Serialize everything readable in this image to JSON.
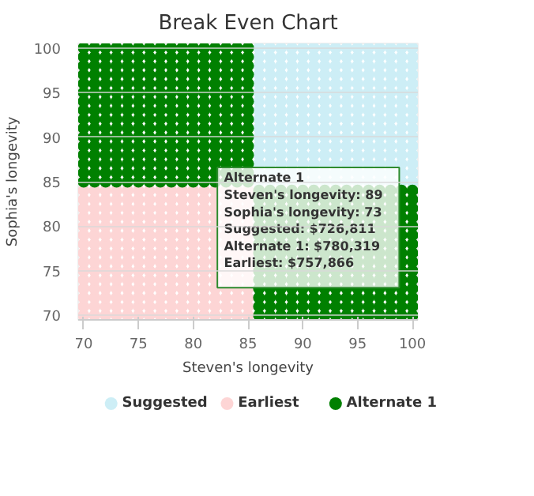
{
  "chart_data": {
    "type": "scatter",
    "title": "Break Even Chart",
    "xlabel": "Steven's longevity",
    "ylabel": "Sophia's longevity",
    "xlim": [
      69.5,
      100.5
    ],
    "ylim": [
      69.5,
      100.5
    ],
    "xticks": [
      70,
      75,
      80,
      85,
      90,
      95,
      100
    ],
    "yticks": [
      70,
      75,
      80,
      85,
      90,
      95,
      100
    ],
    "grid": "y",
    "legend": "bottom",
    "marker": "circle",
    "series": [
      {
        "name": "Suggested",
        "color": "#cdeef6",
        "x": [
          86,
          87,
          88,
          89,
          90,
          91,
          92,
          93,
          94,
          95,
          96,
          97,
          98,
          99,
          100,
          86,
          87,
          88,
          89,
          90,
          91,
          92,
          93,
          94,
          95,
          96,
          97,
          98,
          99,
          100,
          86,
          87,
          88,
          89,
          90,
          91,
          92,
          93,
          94,
          95,
          96,
          97,
          98,
          99,
          100,
          86,
          87,
          88,
          89,
          90,
          91,
          92,
          93,
          94,
          95,
          96,
          97,
          98,
          99,
          100,
          86,
          87,
          88,
          89,
          90,
          91,
          92,
          93,
          94,
          95,
          96,
          97,
          98,
          99,
          100,
          86,
          87,
          88,
          89,
          90,
          91,
          92,
          93,
          94,
          95,
          96,
          97,
          98,
          99,
          100,
          86,
          87,
          88,
          89,
          90,
          91,
          92,
          93,
          94,
          95,
          96,
          97,
          98,
          99,
          100,
          86,
          87,
          88,
          89,
          90,
          91,
          92,
          93,
          94,
          95,
          96,
          97,
          98,
          99,
          100,
          86,
          87,
          88,
          89,
          90,
          91,
          92,
          93,
          94,
          95,
          96,
          97,
          98,
          99,
          100,
          86,
          87,
          88,
          89,
          90,
          91,
          92,
          93,
          94,
          95,
          96,
          97,
          98,
          99,
          100,
          86,
          87,
          88,
          89,
          90,
          91,
          92,
          93,
          94,
          95,
          96,
          97,
          98,
          99,
          100,
          86,
          87,
          88,
          89,
          90,
          91,
          92,
          93,
          94,
          95,
          96,
          97,
          98,
          99,
          100,
          86,
          87,
          88,
          89,
          90,
          91,
          92,
          93,
          94,
          95,
          96,
          97,
          98,
          99,
          100,
          86,
          87,
          88,
          89,
          90,
          91,
          92,
          93,
          94,
          95,
          96,
          97,
          98,
          99,
          100,
          86,
          87,
          88,
          89,
          90,
          91,
          92,
          93,
          94,
          95,
          96,
          97,
          98,
          99,
          100,
          86,
          87,
          88,
          89,
          90,
          91,
          92,
          93,
          94,
          95,
          96,
          97,
          98,
          99,
          100
        ],
        "values": [
          85,
          85,
          85,
          85,
          85,
          85,
          85,
          85,
          85,
          85,
          85,
          85,
          85,
          85,
          85,
          86,
          86,
          86,
          86,
          86,
          86,
          86,
          86,
          86,
          86,
          86,
          86,
          86,
          86,
          86,
          87,
          87,
          87,
          87,
          87,
          87,
          87,
          87,
          87,
          87,
          87,
          87,
          87,
          87,
          87,
          88,
          88,
          88,
          88,
          88,
          88,
          88,
          88,
          88,
          88,
          88,
          88,
          88,
          88,
          88,
          89,
          89,
          89,
          89,
          89,
          89,
          89,
          89,
          89,
          89,
          89,
          89,
          89,
          89,
          89,
          90,
          90,
          90,
          90,
          90,
          90,
          90,
          90,
          90,
          90,
          90,
          90,
          90,
          90,
          90,
          91,
          91,
          91,
          91,
          91,
          91,
          91,
          91,
          91,
          91,
          91,
          91,
          91,
          91,
          91,
          92,
          92,
          92,
          92,
          92,
          92,
          92,
          92,
          92,
          92,
          92,
          92,
          92,
          92,
          92,
          93,
          93,
          93,
          93,
          93,
          93,
          93,
          93,
          93,
          93,
          93,
          93,
          93,
          93,
          93,
          94,
          94,
          94,
          94,
          94,
          94,
          94,
          94,
          94,
          94,
          94,
          94,
          94,
          94,
          94,
          95,
          95,
          95,
          95,
          95,
          95,
          95,
          95,
          95,
          95,
          95,
          95,
          95,
          95,
          95,
          96,
          96,
          96,
          96,
          96,
          96,
          96,
          96,
          96,
          96,
          96,
          96,
          96,
          96,
          96,
          97,
          97,
          97,
          97,
          97,
          97,
          97,
          97,
          97,
          97,
          97,
          97,
          97,
          97,
          97,
          98,
          98,
          98,
          98,
          98,
          98,
          98,
          98,
          98,
          98,
          98,
          98,
          98,
          98,
          98,
          99,
          99,
          99,
          99,
          99,
          99,
          99,
          99,
          99,
          99,
          99,
          99,
          99,
          99,
          99,
          100,
          100,
          100,
          100,
          100,
          100,
          100,
          100,
          100,
          100,
          100,
          100,
          100,
          100,
          100
        ]
      },
      {
        "name": "Earliest",
        "color": "#fdd5d5",
        "x": [
          70,
          71,
          72,
          73,
          74,
          75,
          76,
          77,
          78,
          79,
          80,
          81,
          82,
          83,
          84,
          85,
          70,
          71,
          72,
          73,
          74,
          75,
          76,
          77,
          78,
          79,
          80,
          81,
          82,
          83,
          84,
          85,
          70,
          71,
          72,
          73,
          74,
          75,
          76,
          77,
          78,
          79,
          80,
          81,
          82,
          83,
          84,
          85,
          70,
          71,
          72,
          73,
          74,
          75,
          76,
          77,
          78,
          79,
          80,
          81,
          82,
          83,
          84,
          85,
          70,
          71,
          72,
          73,
          74,
          75,
          76,
          77,
          78,
          79,
          80,
          81,
          82,
          83,
          84,
          85,
          70,
          71,
          72,
          73,
          74,
          75,
          76,
          77,
          78,
          79,
          80,
          81,
          82,
          83,
          84,
          85,
          70,
          71,
          72,
          73,
          74,
          75,
          76,
          77,
          78,
          79,
          80,
          81,
          82,
          83,
          84,
          85,
          70,
          71,
          72,
          73,
          74,
          75,
          76,
          77,
          78,
          79,
          80,
          81,
          82,
          83,
          84,
          85,
          70,
          71,
          72,
          73,
          74,
          75,
          76,
          77,
          78,
          79,
          80,
          81,
          82,
          83,
          84,
          85,
          70,
          71,
          72,
          73,
          74,
          75,
          76,
          77,
          78,
          79,
          80,
          81,
          82,
          83,
          84,
          85,
          70,
          71,
          72,
          73,
          74,
          75,
          76,
          77,
          78,
          79,
          80,
          81,
          82,
          83,
          84,
          85,
          70,
          71,
          72,
          73,
          74,
          75,
          76,
          77,
          78,
          79,
          80,
          81,
          82,
          83,
          84,
          85,
          70,
          71,
          72,
          73,
          74,
          75,
          76,
          77,
          78,
          79,
          80,
          81,
          82,
          83,
          84,
          85,
          70,
          71,
          72,
          73,
          74,
          75,
          76,
          77,
          78,
          79,
          80,
          81,
          82,
          83,
          84,
          85,
          70,
          71,
          72,
          73,
          74,
          75,
          76,
          77,
          78,
          79,
          80,
          81,
          82,
          83,
          84,
          85
        ],
        "values": [
          70,
          70,
          70,
          70,
          70,
          70,
          70,
          70,
          70,
          70,
          70,
          70,
          70,
          70,
          70,
          70,
          71,
          71,
          71,
          71,
          71,
          71,
          71,
          71,
          71,
          71,
          71,
          71,
          71,
          71,
          71,
          71,
          72,
          72,
          72,
          72,
          72,
          72,
          72,
          72,
          72,
          72,
          72,
          72,
          72,
          72,
          72,
          72,
          73,
          73,
          73,
          73,
          73,
          73,
          73,
          73,
          73,
          73,
          73,
          73,
          73,
          73,
          73,
          73,
          74,
          74,
          74,
          74,
          74,
          74,
          74,
          74,
          74,
          74,
          74,
          74,
          74,
          74,
          74,
          74,
          75,
          75,
          75,
          75,
          75,
          75,
          75,
          75,
          75,
          75,
          75,
          75,
          75,
          75,
          75,
          75,
          76,
          76,
          76,
          76,
          76,
          76,
          76,
          76,
          76,
          76,
          76,
          76,
          76,
          76,
          76,
          76,
          77,
          77,
          77,
          77,
          77,
          77,
          77,
          77,
          77,
          77,
          77,
          77,
          77,
          77,
          77,
          77,
          78,
          78,
          78,
          78,
          78,
          78,
          78,
          78,
          78,
          78,
          78,
          78,
          78,
          78,
          78,
          78,
          79,
          79,
          79,
          79,
          79,
          79,
          79,
          79,
          79,
          79,
          79,
          79,
          79,
          79,
          79,
          79,
          80,
          80,
          80,
          80,
          80,
          80,
          80,
          80,
          80,
          80,
          80,
          80,
          80,
          80,
          80,
          80,
          81,
          81,
          81,
          81,
          81,
          81,
          81,
          81,
          81,
          81,
          81,
          81,
          81,
          81,
          81,
          81,
          82,
          82,
          82,
          82,
          82,
          82,
          82,
          82,
          82,
          82,
          82,
          82,
          82,
          82,
          82,
          82,
          83,
          83,
          83,
          83,
          83,
          83,
          83,
          83,
          83,
          83,
          83,
          83,
          83,
          83,
          83,
          83,
          84,
          84,
          84,
          84,
          84,
          84,
          84,
          84,
          84,
          84,
          84,
          84,
          84,
          84,
          84,
          84
        ]
      },
      {
        "name": "Alternate 1",
        "color": "#008000",
        "x": [
          70,
          71,
          72,
          73,
          74,
          75,
          76,
          77,
          78,
          79,
          80,
          81,
          82,
          83,
          84,
          85,
          70,
          71,
          72,
          73,
          74,
          75,
          76,
          77,
          78,
          79,
          80,
          81,
          82,
          83,
          84,
          85,
          70,
          71,
          72,
          73,
          74,
          75,
          76,
          77,
          78,
          79,
          80,
          81,
          82,
          83,
          84,
          85,
          70,
          71,
          72,
          73,
          74,
          75,
          76,
          77,
          78,
          79,
          80,
          81,
          82,
          83,
          84,
          85,
          70,
          71,
          72,
          73,
          74,
          75,
          76,
          77,
          78,
          79,
          80,
          81,
          82,
          83,
          84,
          85,
          70,
          71,
          72,
          73,
          74,
          75,
          76,
          77,
          78,
          79,
          80,
          81,
          82,
          83,
          84,
          85,
          70,
          71,
          72,
          73,
          74,
          75,
          76,
          77,
          78,
          79,
          80,
          81,
          82,
          83,
          84,
          85,
          70,
          71,
          72,
          73,
          74,
          75,
          76,
          77,
          78,
          79,
          80,
          81,
          82,
          83,
          84,
          85,
          70,
          71,
          72,
          73,
          74,
          75,
          76,
          77,
          78,
          79,
          80,
          81,
          82,
          83,
          84,
          85,
          70,
          71,
          72,
          73,
          74,
          75,
          76,
          77,
          78,
          79,
          80,
          81,
          82,
          83,
          84,
          85,
          70,
          71,
          72,
          73,
          74,
          75,
          76,
          77,
          78,
          79,
          80,
          81,
          82,
          83,
          84,
          85,
          70,
          71,
          72,
          73,
          74,
          75,
          76,
          77,
          78,
          79,
          80,
          81,
          82,
          83,
          84,
          85,
          70,
          71,
          72,
          73,
          74,
          75,
          76,
          77,
          78,
          79,
          80,
          81,
          82,
          83,
          84,
          85,
          70,
          71,
          72,
          73,
          74,
          75,
          76,
          77,
          78,
          79,
          80,
          81,
          82,
          83,
          84,
          85,
          70,
          71,
          72,
          73,
          74,
          75,
          76,
          77,
          78,
          79,
          80,
          81,
          82,
          83,
          84,
          85,
          70,
          71,
          72,
          73,
          74,
          75,
          76,
          77,
          78,
          79,
          80,
          81,
          82,
          83,
          84,
          85,
          86,
          87,
          88,
          89,
          90,
          91,
          92,
          93,
          94,
          95,
          96,
          97,
          98,
          99,
          100,
          86,
          87,
          88,
          89,
          90,
          91,
          92,
          93,
          94,
          95,
          96,
          97,
          98,
          99,
          100,
          86,
          87,
          88,
          89,
          90,
          91,
          92,
          93,
          94,
          95,
          96,
          97,
          98,
          99,
          100,
          86,
          87,
          88,
          89,
          90,
          91,
          92,
          93,
          94,
          95,
          96,
          97,
          98,
          99,
          100,
          86,
          87,
          88,
          89,
          90,
          91,
          92,
          93,
          94,
          95,
          96,
          97,
          98,
          99,
          100,
          86,
          87,
          88,
          89,
          90,
          91,
          92,
          93,
          94,
          95,
          96,
          97,
          98,
          99,
          100,
          86,
          87,
          88,
          89,
          90,
          91,
          92,
          93,
          94,
          95,
          96,
          97,
          98,
          99,
          100,
          86,
          87,
          88,
          89,
          90,
          91,
          92,
          93,
          94,
          95,
          96,
          97,
          98,
          99,
          100,
          86,
          87,
          88,
          89,
          90,
          91,
          92,
          93,
          94,
          95,
          96,
          97,
          98,
          99,
          100,
          86,
          87,
          88,
          89,
          90,
          91,
          92,
          93,
          94,
          95,
          96,
          97,
          98,
          99,
          100,
          86,
          87,
          88,
          89,
          90,
          91,
          92,
          93,
          94,
          95,
          96,
          97,
          98,
          99,
          100,
          86,
          87,
          88,
          89,
          90,
          91,
          92,
          93,
          94,
          95,
          96,
          97,
          98,
          99,
          100,
          86,
          87,
          88,
          89,
          90,
          91,
          92,
          93,
          94,
          95,
          96,
          97,
          98,
          99,
          100,
          86,
          87,
          88,
          89,
          90,
          91,
          92,
          93,
          94,
          95,
          96,
          97,
          98,
          99,
          100,
          86,
          87,
          88,
          89,
          90,
          91,
          92,
          93,
          94,
          95,
          96,
          97,
          98,
          99,
          100
        ],
        "values": [
          85,
          85,
          85,
          85,
          85,
          85,
          85,
          85,
          85,
          85,
          85,
          85,
          85,
          85,
          85,
          85,
          86,
          86,
          86,
          86,
          86,
          86,
          86,
          86,
          86,
          86,
          86,
          86,
          86,
          86,
          86,
          86,
          87,
          87,
          87,
          87,
          87,
          87,
          87,
          87,
          87,
          87,
          87,
          87,
          87,
          87,
          87,
          87,
          88,
          88,
          88,
          88,
          88,
          88,
          88,
          88,
          88,
          88,
          88,
          88,
          88,
          88,
          88,
          88,
          89,
          89,
          89,
          89,
          89,
          89,
          89,
          89,
          89,
          89,
          89,
          89,
          89,
          89,
          89,
          89,
          90,
          90,
          90,
          90,
          90,
          90,
          90,
          90,
          90,
          90,
          90,
          90,
          90,
          90,
          90,
          90,
          91,
          91,
          91,
          91,
          91,
          91,
          91,
          91,
          91,
          91,
          91,
          91,
          91,
          91,
          91,
          91,
          92,
          92,
          92,
          92,
          92,
          92,
          92,
          92,
          92,
          92,
          92,
          92,
          92,
          92,
          92,
          92,
          93,
          93,
          93,
          93,
          93,
          93,
          93,
          93,
          93,
          93,
          93,
          93,
          93,
          93,
          93,
          93,
          94,
          94,
          94,
          94,
          94,
          94,
          94,
          94,
          94,
          94,
          94,
          94,
          94,
          94,
          94,
          94,
          95,
          95,
          95,
          95,
          95,
          95,
          95,
          95,
          95,
          95,
          95,
          95,
          95,
          95,
          95,
          95,
          96,
          96,
          96,
          96,
          96,
          96,
          96,
          96,
          96,
          96,
          96,
          96,
          96,
          96,
          96,
          96,
          97,
          97,
          97,
          97,
          97,
          97,
          97,
          97,
          97,
          97,
          97,
          97,
          97,
          97,
          97,
          97,
          98,
          98,
          98,
          98,
          98,
          98,
          98,
          98,
          98,
          98,
          98,
          98,
          98,
          98,
          98,
          98,
          99,
          99,
          99,
          99,
          99,
          99,
          99,
          99,
          99,
          99,
          99,
          99,
          99,
          99,
          99,
          99,
          100,
          100,
          100,
          100,
          100,
          100,
          100,
          100,
          100,
          100,
          100,
          100,
          100,
          100,
          100,
          100,
          70,
          70,
          70,
          70,
          70,
          70,
          70,
          70,
          70,
          70,
          70,
          70,
          70,
          70,
          70,
          71,
          71,
          71,
          71,
          71,
          71,
          71,
          71,
          71,
          71,
          71,
          71,
          71,
          71,
          71,
          72,
          72,
          72,
          72,
          72,
          72,
          72,
          72,
          72,
          72,
          72,
          72,
          72,
          72,
          72,
          73,
          73,
          73,
          73,
          73,
          73,
          73,
          73,
          73,
          73,
          73,
          73,
          73,
          73,
          73,
          74,
          74,
          74,
          74,
          74,
          74,
          74,
          74,
          74,
          74,
          74,
          74,
          74,
          74,
          74,
          75,
          75,
          75,
          75,
          75,
          75,
          75,
          75,
          75,
          75,
          75,
          75,
          75,
          75,
          75,
          76,
          76,
          76,
          76,
          76,
          76,
          76,
          76,
          76,
          76,
          76,
          76,
          76,
          76,
          76,
          77,
          77,
          77,
          77,
          77,
          77,
          77,
          77,
          77,
          77,
          77,
          77,
          77,
          77,
          77,
          78,
          78,
          78,
          78,
          78,
          78,
          78,
          78,
          78,
          78,
          78,
          78,
          78,
          78,
          78,
          79,
          79,
          79,
          79,
          79,
          79,
          79,
          79,
          79,
          79,
          79,
          79,
          79,
          79,
          79,
          80,
          80,
          80,
          80,
          80,
          80,
          80,
          80,
          80,
          80,
          80,
          80,
          80,
          80,
          80,
          81,
          81,
          81,
          81,
          81,
          81,
          81,
          81,
          81,
          81,
          81,
          81,
          81,
          81,
          81,
          82,
          82,
          82,
          82,
          82,
          82,
          82,
          82,
          82,
          82,
          82,
          82,
          82,
          82,
          82,
          83,
          83,
          83,
          83,
          83,
          83,
          83,
          83,
          83,
          83,
          83,
          83,
          83,
          83,
          83,
          84,
          84,
          84,
          84,
          84,
          84,
          84,
          84,
          84,
          84,
          84,
          84,
          84,
          84,
          84
        ]
      }
    ],
    "annotations": [
      {
        "text": "Alternate 1\nSteven's longevity: 89\nSophia's longevity: 73\nSuggested: $726,811\nAlternate 1: $780,319\nEarliest: $757,866",
        "x": 89,
        "y": 73
      }
    ]
  }
}
